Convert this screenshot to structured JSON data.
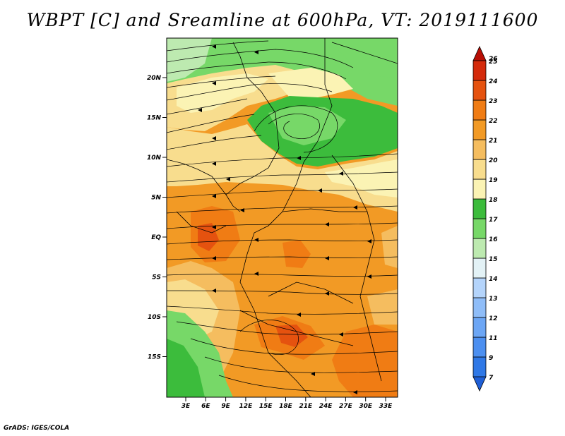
{
  "title": "WBPT [C] and Sreamline at 600hPa, VT: 2019111600",
  "credit": "GrADS: IGES/COLA",
  "map": {
    "lat_labels": [
      "20N",
      "15N",
      "10N",
      "5N",
      "EQ",
      "5S",
      "10S",
      "15S"
    ],
    "lon_labels": [
      "3E",
      "6E",
      "9E",
      "12E",
      "15E",
      "18E",
      "21E",
      "24E",
      "27E",
      "30E",
      "33E"
    ],
    "lat_range": [
      -20,
      25
    ],
    "lon_range": [
      0,
      36
    ]
  },
  "colorbar": {
    "labels": [
      "7",
      "9",
      "11",
      "12",
      "13",
      "14",
      "15",
      "16",
      "17",
      "18",
      "19",
      "20",
      "21",
      "22",
      "23",
      "24",
      "25",
      "26"
    ],
    "colors": [
      "#1f5fd6",
      "#2f78e6",
      "#4c8ff0",
      "#6ca6f5",
      "#8fbdf8",
      "#b4d4fb",
      "#e3f2f6",
      "#bdeab0",
      "#77d868",
      "#3cbc3c",
      "#fbf3b4",
      "#f8dd8e",
      "#f5bd5f",
      "#f29a25",
      "#f07c14",
      "#e5520f",
      "#d42a0b",
      "#b80f05"
    ]
  }
}
